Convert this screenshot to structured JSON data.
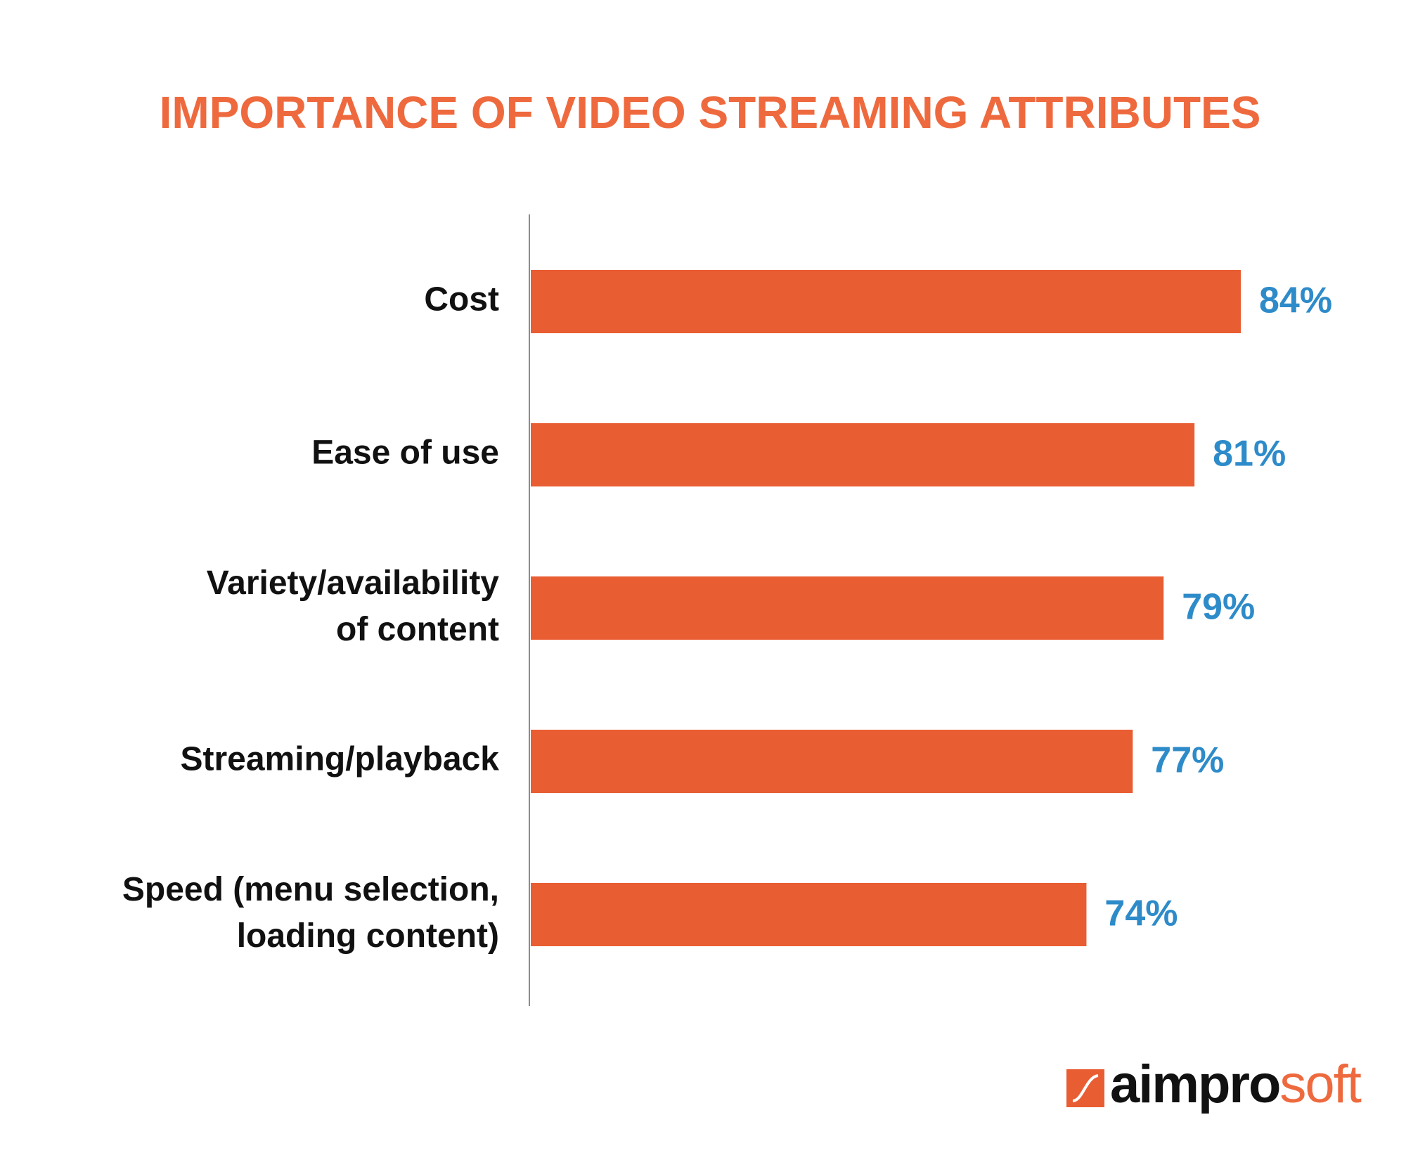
{
  "chart_data": {
    "type": "bar",
    "orientation": "horizontal",
    "title": "IMPORTANCE OF VIDEO STREAMING ATTRIBUTES",
    "categories": [
      "Cost",
      "Ease of use",
      "Variety/availability\nof content",
      "Streaming/playback",
      "Speed (menu selection,\nloading content)"
    ],
    "values": [
      84,
      81,
      79,
      77,
      74
    ],
    "value_labels": [
      "84%",
      "81%",
      "79%",
      "77%",
      "74%"
    ],
    "color": "#e95d32",
    "label_color": "#2e8bc9",
    "xlim": [
      38,
      84
    ]
  },
  "logo": {
    "dark": "aimpro",
    "light": "soft"
  }
}
